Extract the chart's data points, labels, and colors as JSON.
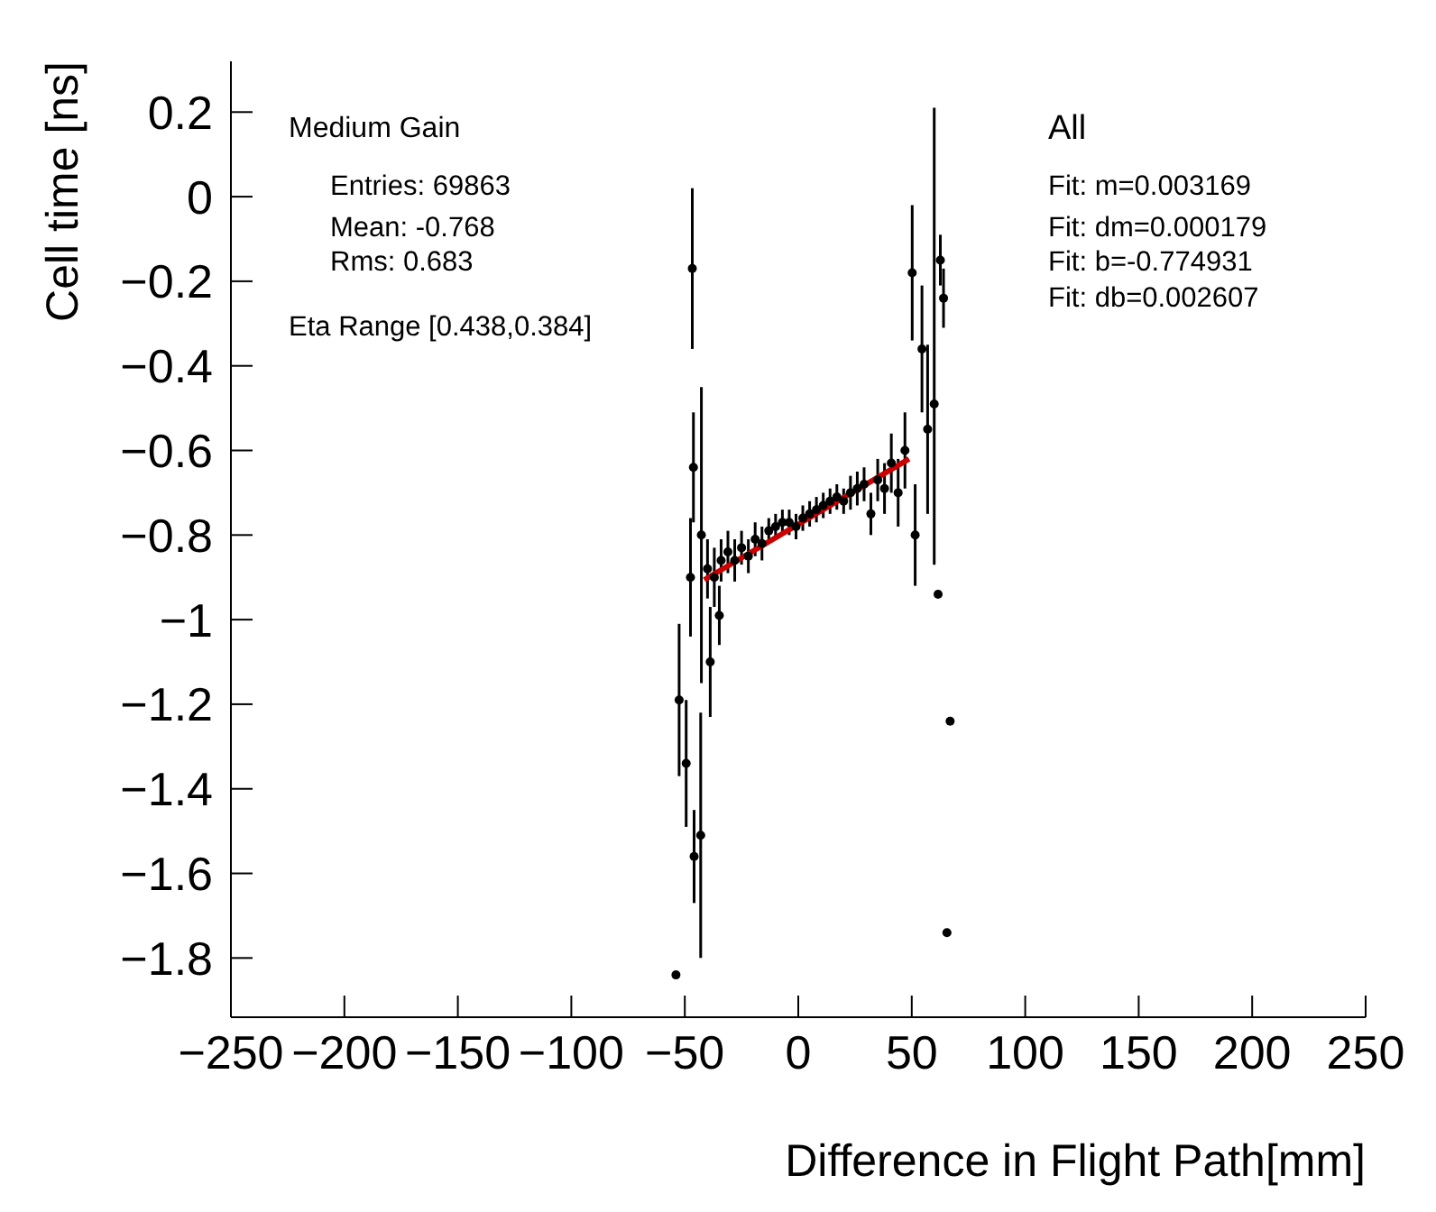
{
  "chart_data": {
    "type": "scatter",
    "xlabel": "Difference in Flight Path[mm]",
    "ylabel": "Cell time [ns]",
    "xlim": [
      -250,
      250
    ],
    "ylim": [
      -1.94,
      0.32
    ],
    "xticks": [
      -250,
      -200,
      -150,
      -100,
      -50,
      0,
      50,
      100,
      150,
      200,
      250
    ],
    "yticks": [
      -1.8,
      -1.6,
      -1.4,
      -1.2,
      -1,
      -0.8,
      -0.6,
      -0.4,
      -0.2,
      0,
      0.2
    ],
    "marker": "circle",
    "annotations": [
      "Medium Gain",
      "Entries: 69863",
      "Mean: -0.768",
      "Rms: 0.683",
      "Eta Range [0.438,0.384]",
      "All",
      "Fit: m=0.003169",
      "Fit: dm=0.000179",
      "Fit: b=-0.774931",
      "Fit: db=0.002607"
    ],
    "series": [
      {
        "color": "#000000",
        "x": [
          -53.9,
          -52.5,
          -49.4,
          -47.5,
          -46.7,
          -46.2,
          -45.9,
          -42.7,
          -43,
          -40,
          -38.8,
          -37,
          -34.8,
          -34,
          -31,
          -28,
          -25,
          -22,
          -19,
          -16,
          -13,
          -10,
          -7,
          -4,
          -1,
          2,
          5,
          8,
          11,
          14,
          17,
          20,
          23,
          26,
          29,
          32,
          35,
          38,
          41,
          44,
          47,
          50.2,
          51.5,
          54.5,
          57,
          59.9,
          61.6,
          62.6,
          64,
          65.5,
          66.9
        ],
        "values": [
          -1.84,
          -1.19,
          -1.34,
          -0.9,
          -0.17,
          -0.64,
          -1.56,
          -0.8,
          -1.51,
          -0.88,
          -1.1,
          -0.9,
          -0.99,
          -0.86,
          -0.84,
          -0.86,
          -0.83,
          -0.85,
          -0.81,
          -0.82,
          -0.79,
          -0.78,
          -0.77,
          -0.77,
          -0.78,
          -0.76,
          -0.75,
          -0.74,
          -0.73,
          -0.72,
          -0.71,
          -0.72,
          -0.7,
          -0.69,
          -0.68,
          -0.75,
          -0.67,
          -0.69,
          -0.63,
          -0.7,
          -0.6,
          -0.18,
          -0.8,
          -0.36,
          -0.55,
          -0.49,
          -0.94,
          -0.15,
          -0.24,
          -1.74,
          -1.24
        ],
        "errors": [
          null,
          0.18,
          0.15,
          0.14,
          0.19,
          0.13,
          0.11,
          0.35,
          0.29,
          0.07,
          0.13,
          0.07,
          0.07,
          0.05,
          0.05,
          0.05,
          0.04,
          0.04,
          0.04,
          0.04,
          0.03,
          0.03,
          0.03,
          0.03,
          0.03,
          0.03,
          0.03,
          0.03,
          0.03,
          0.03,
          0.03,
          0.03,
          0.04,
          0.04,
          0.04,
          0.05,
          0.05,
          0.06,
          0.07,
          0.08,
          0.09,
          0.16,
          0.12,
          0.15,
          0.2,
          [
            -0.87,
            0.21
          ],
          null,
          0.06,
          0.07,
          null,
          null
        ]
      },
      {
        "type": "line",
        "color": "#cc0000",
        "marker": "none",
        "x": [
          -41.4,
          48.8
        ],
        "values": [
          -0.906,
          -0.62
        ]
      }
    ]
  }
}
